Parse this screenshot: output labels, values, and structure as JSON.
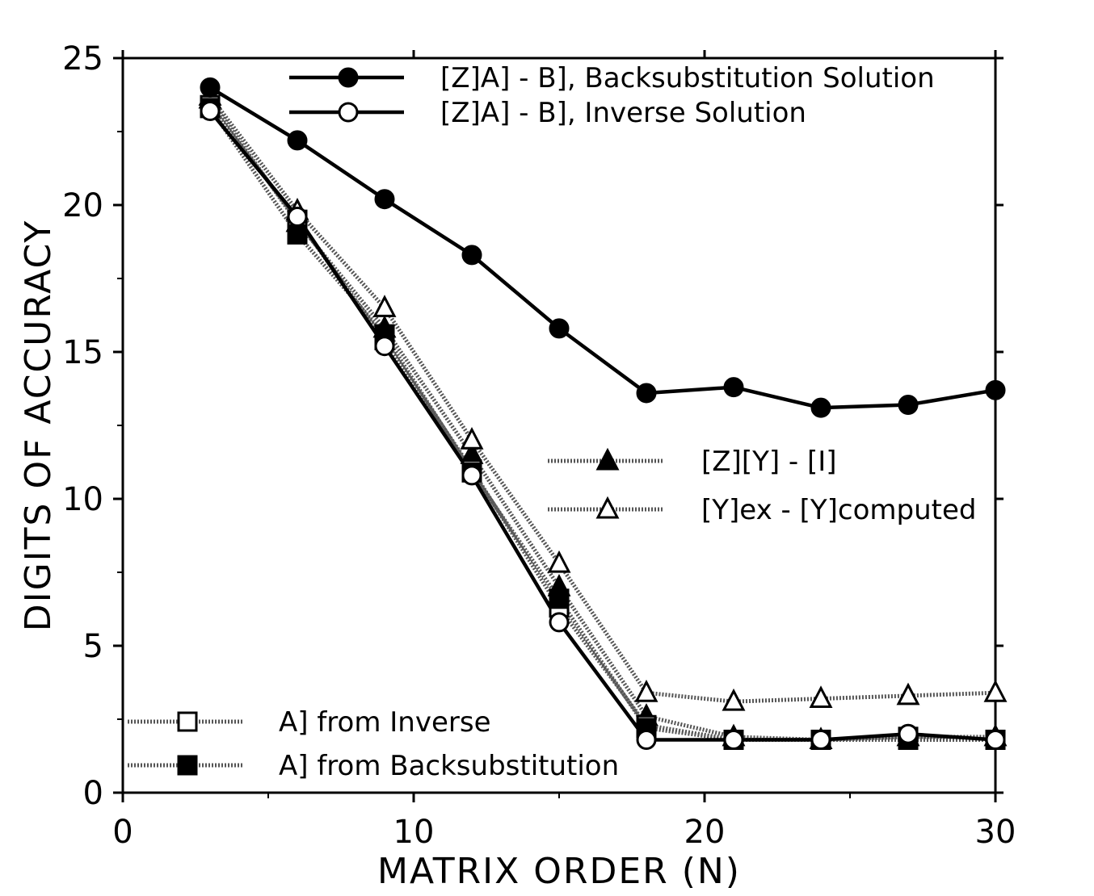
{
  "chart_data": {
    "type": "line",
    "title": "",
    "xlabel": "MATRIX  ORDER  (N)",
    "ylabel": "DIGITS  OF  ACCURACY",
    "xlim": [
      0,
      30
    ],
    "ylim": [
      0,
      25
    ],
    "xticks": [
      0,
      10,
      20,
      30
    ],
    "yticks": [
      0,
      5,
      10,
      15,
      20,
      25
    ],
    "x_minor_step": 5,
    "y_minor_step": 2.5,
    "grid": false,
    "x": [
      3,
      6,
      9,
      12,
      15,
      18,
      21,
      24,
      27,
      30
    ],
    "series": [
      {
        "name": "[Z]A] - B], Backsubstitution Solution",
        "marker": "circle",
        "fill": "filled",
        "line": "solid",
        "values": [
          24.0,
          22.2,
          20.2,
          18.3,
          15.8,
          13.6,
          13.8,
          13.1,
          13.2,
          13.7
        ]
      },
      {
        "name": "[Z]A] - B], Inverse Solution",
        "marker": "circle",
        "fill": "open",
        "line": "solid",
        "values": [
          23.2,
          19.6,
          15.2,
          10.8,
          5.8,
          1.8,
          1.8,
          1.8,
          2.0,
          1.8
        ]
      },
      {
        "name": "[Z][Y] - [I]",
        "marker": "triangle",
        "fill": "filled",
        "line": "dotted",
        "values": [
          23.6,
          19.4,
          15.8,
          11.5,
          7.0,
          2.6,
          1.9,
          1.8,
          1.9,
          1.9
        ]
      },
      {
        "name": "[Y]ex - [Y]computed",
        "marker": "triangle",
        "fill": "open",
        "line": "dotted",
        "values": [
          23.7,
          19.8,
          16.5,
          12.0,
          7.8,
          3.4,
          3.1,
          3.2,
          3.3,
          3.4
        ]
      },
      {
        "name": "A] from Inverse",
        "marker": "square",
        "fill": "open",
        "line": "dotted",
        "values": [
          23.4,
          19.5,
          15.4,
          11.0,
          6.3,
          2.3,
          1.8,
          1.8,
          1.9,
          1.8
        ]
      },
      {
        "name": "A] from Backsubstitution",
        "marker": "square",
        "fill": "filled",
        "line": "dotted",
        "values": [
          23.3,
          19.0,
          15.6,
          10.9,
          6.6,
          2.2,
          1.8,
          1.8,
          1.8,
          1.8
        ]
      }
    ],
    "legend": [
      {
        "group": "top",
        "series": [
          0,
          1
        ]
      },
      {
        "group": "middle-right",
        "series": [
          2,
          3
        ]
      },
      {
        "group": "bottom-left",
        "series": [
          4,
          5
        ]
      }
    ]
  }
}
